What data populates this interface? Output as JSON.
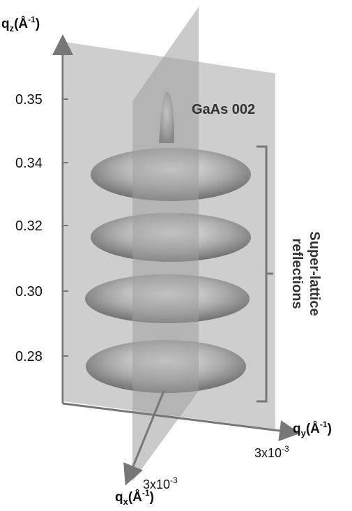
{
  "figure": {
    "z_axis": {
      "label": {
        "base": "q",
        "sub": "z",
        "open": "(Å",
        "sup": "-1",
        "close": ")"
      },
      "ticks": [
        "0.35",
        "0.34",
        "0.32",
        "0.30",
        "0.28"
      ]
    },
    "y_axis": {
      "label": {
        "base": "q",
        "sub": "y",
        "open": "(Å",
        "sup": "-1",
        "close": ")"
      },
      "scale": {
        "base": "3x10",
        "sup": "-3"
      }
    },
    "x_axis": {
      "label": {
        "base": "q",
        "sub": "x",
        "open": "(Å",
        "sup": "-1",
        "close": ")"
      },
      "scale": {
        "base": "3x10",
        "sup": "-3"
      }
    },
    "annotations": {
      "peak": "GaAs 002",
      "bracket": [
        "Super-lattice",
        "reflections"
      ]
    }
  }
}
